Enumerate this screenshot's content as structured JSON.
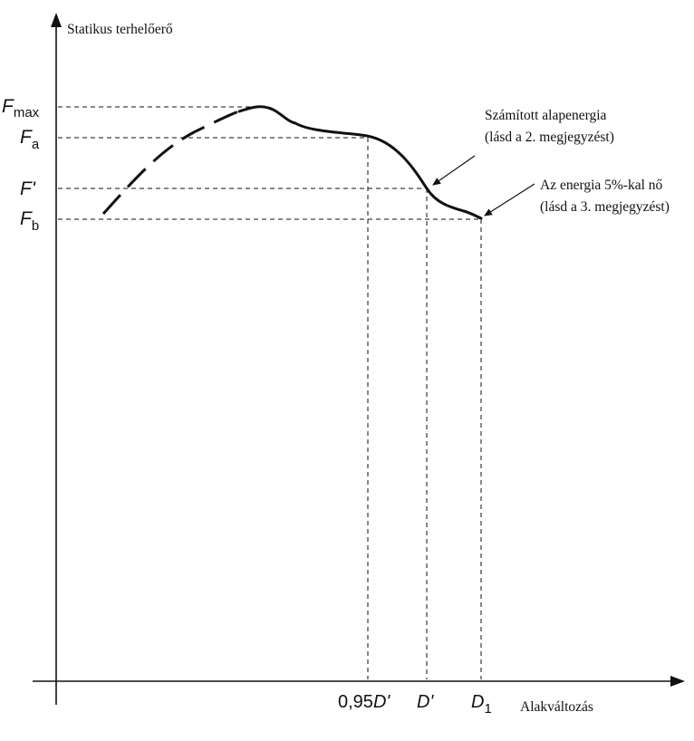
{
  "axes": {
    "y_label": "Statikus terhelőerő",
    "x_label": "Alakváltozás"
  },
  "y_levels": {
    "fmax": {
      "base": "F",
      "sub": "max"
    },
    "fa": {
      "base": "F",
      "sub": "a"
    },
    "fprime": {
      "base": "F'",
      "sub": ""
    },
    "fb": {
      "base": "F",
      "sub": "b"
    }
  },
  "x_levels": {
    "d095": {
      "prefix": "0,95",
      "base": "D'",
      "sub": ""
    },
    "dprime": {
      "prefix": "",
      "base": "D'",
      "sub": ""
    },
    "d1": {
      "prefix": "",
      "base": "D",
      "sub": "1"
    }
  },
  "annotations": {
    "base_energy": {
      "line1": "Számított alapenergia",
      "line2": "(lásd a 2. megjegyzést)"
    },
    "energy_increase": {
      "line1": "Az energia 5%-kal nő",
      "line2": "(lásd a 3. megjegyzést)"
    }
  }
}
